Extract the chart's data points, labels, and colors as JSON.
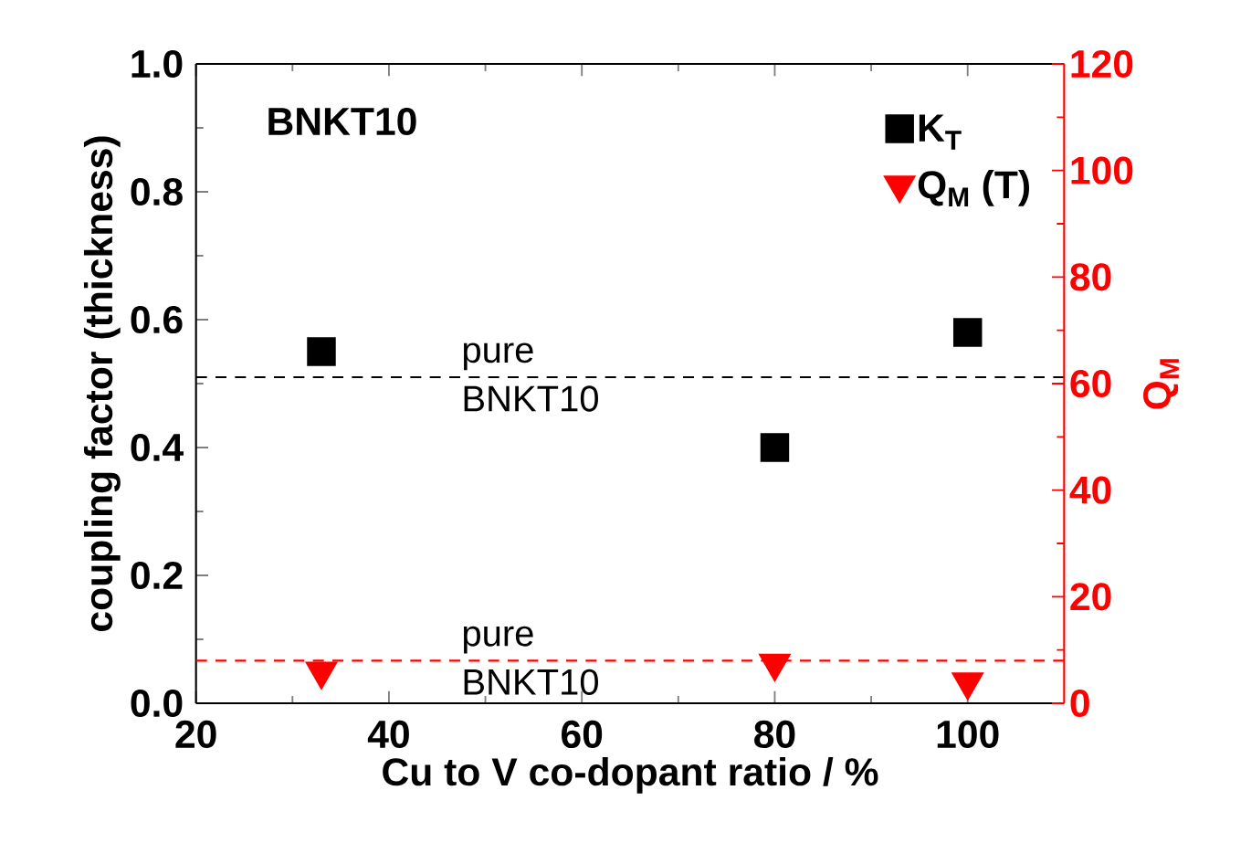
{
  "chart_data": {
    "type": "scatter",
    "xlabel": "Cu to V co-dopant ratio / %",
    "ylabel": "coupling factor (thickness)",
    "y2label": "Q$_{M}$",
    "x": [
      33,
      80,
      100
    ],
    "series": [
      {
        "name": "K$_{T}$",
        "color": "#000000",
        "marker": "square",
        "values": [
          0.55,
          0.4,
          0.58
        ]
      },
      {
        "name": "Q$_{M}$ (T)",
        "color": "#ff0000",
        "marker": "triangle",
        "axis": "y2",
        "values": [
          6,
          7.5,
          4
        ]
      }
    ],
    "xlim": [
      20,
      110
    ],
    "xticks": [
      20,
      40,
      60,
      80,
      100
    ],
    "ylim": [
      0,
      1
    ],
    "yticks": [
      {
        "value": 0,
        "label": "0.0"
      },
      0.2,
      0.4,
      0.6,
      0.8,
      {
        "value": 1,
        "label": "1.0"
      }
    ],
    "y2lim": [
      0,
      120
    ],
    "y2ticks": [
      0,
      20,
      40,
      60,
      80,
      100,
      120
    ],
    "ref_lines": [
      {
        "axis": "y",
        "value": 0.51,
        "label": "pure BNKT10",
        "color": "#000000",
        "line_style": "dashed"
      },
      {
        "axis": "y2",
        "value": 8,
        "label": "pure BNKT10",
        "color": "#ff0000",
        "line_style": "dashed"
      }
    ],
    "annotations": [
      "BNKT10"
    ],
    "legend": "top right",
    "grid": false
  }
}
